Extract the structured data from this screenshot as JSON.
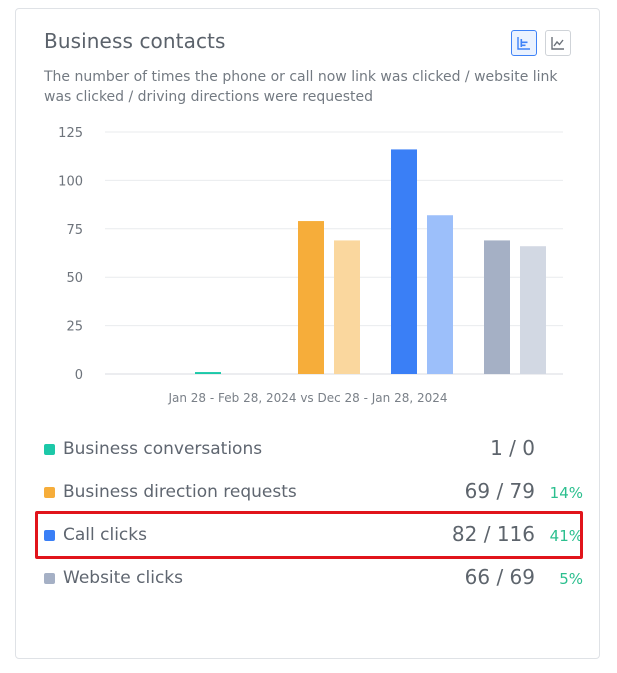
{
  "card": {
    "title": "Business contacts",
    "subtitle": "The number of times the phone or call now link was clicked / website link was clicked / driving directions were requested",
    "view_toggle": {
      "bar_icon": "bar-chart-icon",
      "line_icon": "line-chart-icon",
      "active": "bar"
    }
  },
  "chart_data": {
    "type": "bar",
    "categories": [
      "Business conversations",
      "Business direction requests",
      "Call clicks",
      "Website clicks"
    ],
    "series": [
      {
        "name": "Jan 28 - Feb 28, 2024",
        "values": [
          1,
          79,
          116,
          69
        ]
      },
      {
        "name": "Dec 28 - Jan 28, 2024",
        "values": [
          0,
          69,
          82,
          66
        ]
      }
    ],
    "colors": {
      "current": [
        "#1cc8a8",
        "#f6ad3a",
        "#3a7ff6",
        "#a5b0c5"
      ],
      "previous": [
        "#8ee3d3",
        "#fad79e",
        "#9cbffa",
        "#d2d8e3"
      ]
    },
    "yticks": [
      0,
      25,
      50,
      75,
      100,
      125
    ],
    "ylim": [
      0,
      125
    ],
    "xlabel": "Jan 28 - Feb 28, 2024 vs Dec 28 - Jan 28, 2024",
    "grid": true
  },
  "legend": [
    {
      "label": "Business conversations",
      "value": "1 / 0",
      "pct": "",
      "color": "#1cc8a8"
    },
    {
      "label": "Business direction requests",
      "value": "69 / 79",
      "pct": "14%",
      "color": "#f6ad3a"
    },
    {
      "label": "Call clicks",
      "value": "82 / 116",
      "pct": "41%",
      "color": "#3a7ff6"
    },
    {
      "label": "Website clicks",
      "value": "66 / 69",
      "pct": "5%",
      "color": "#a5b0c5"
    }
  ],
  "highlight_color": "#e1141b"
}
